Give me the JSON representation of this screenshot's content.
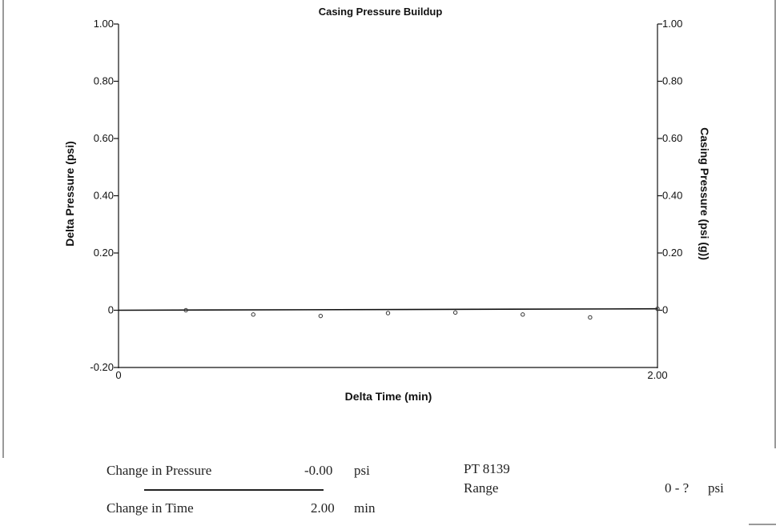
{
  "chart_data": {
    "type": "scatter",
    "title": "Casing Pressure Buildup",
    "xlabel": "Delta Time (min)",
    "ylabel_left": "Delta Pressure (psi)",
    "ylabel_right": "Casing Pressure (psi (g))",
    "xlim": [
      0,
      2.0
    ],
    "ylim_left": [
      -0.2,
      1.0
    ],
    "ylim_right": [
      -0.2,
      1.0
    ],
    "x_tick_labels": [
      "0",
      "2.00"
    ],
    "y_tick_labels_left": [
      "1.00",
      "0.80",
      "0.60",
      "0.40",
      "0.20",
      "0",
      "-0.20"
    ],
    "y_tick_labels_right": [
      "1.00",
      "0.80",
      "0.60",
      "0.40",
      "0.20",
      "0"
    ],
    "grid": false,
    "series": [
      {
        "type": "scatter",
        "points": [
          {
            "x": 0.25,
            "y": 0.0
          },
          {
            "x": 0.5,
            "y": -0.015
          },
          {
            "x": 0.75,
            "y": -0.02
          },
          {
            "x": 1.0,
            "y": -0.01
          },
          {
            "x": 1.25,
            "y": -0.008
          },
          {
            "x": 1.5,
            "y": -0.015
          },
          {
            "x": 1.75,
            "y": -0.025
          },
          {
            "x": 2.0,
            "y": 0.005
          }
        ]
      },
      {
        "type": "line",
        "points": [
          {
            "x": 0.0,
            "y": 0.0
          },
          {
            "x": 2.0,
            "y": 0.005
          }
        ]
      }
    ]
  },
  "footer": {
    "change_pressure_label": "Change in Pressure",
    "change_pressure_value": "-0.00",
    "change_pressure_unit": "psi",
    "change_time_label": "Change in Time",
    "change_time_value": "2.00",
    "change_time_unit": "min",
    "gauge_name": "PT 8139",
    "range_label": "Range",
    "range_value": "0 - ?",
    "range_unit": "psi"
  }
}
